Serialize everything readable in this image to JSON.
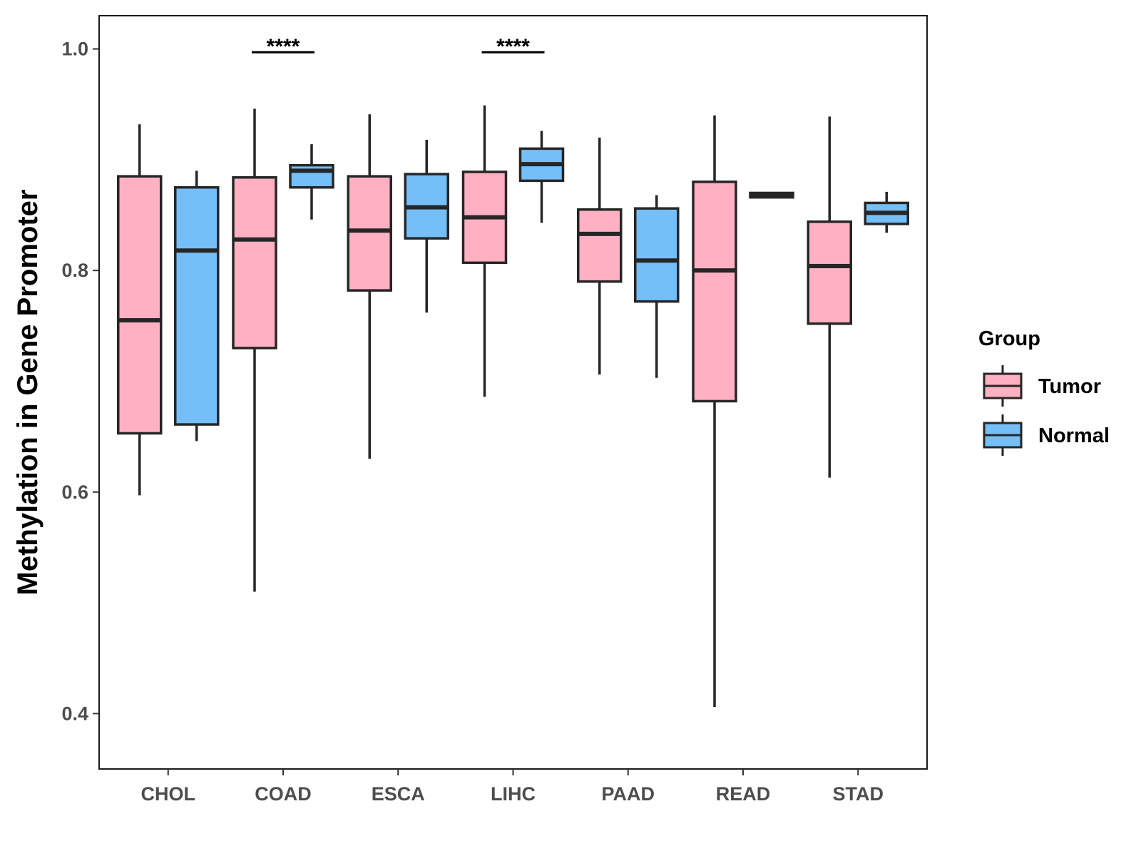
{
  "chart_data": {
    "type": "boxplot",
    "title": "",
    "xlabel": "",
    "ylabel": "Methylation in Gene Promoter",
    "ylim": [
      0.35,
      1.03
    ],
    "yticks": [
      0.4,
      0.6,
      0.8,
      1.0
    ],
    "ytick_labels": [
      "0.4",
      "0.6",
      "0.8",
      "1.0"
    ],
    "categories": [
      "CHOL",
      "COAD",
      "ESCA",
      "LIHC",
      "PAAD",
      "READ",
      "STAD"
    ],
    "legend": {
      "title": "Group",
      "position": "right",
      "entries": [
        {
          "label": "Tumor",
          "color": "#FFB0C2"
        },
        {
          "label": "Normal",
          "color": "#74BFF8"
        }
      ]
    },
    "series": [
      {
        "name": "Tumor",
        "color": "#FFB0C2",
        "boxes": [
          {
            "whisker_low": 0.597,
            "q1": 0.653,
            "median": 0.755,
            "q3": 0.885,
            "whisker_high": 0.932
          },
          {
            "whisker_low": 0.51,
            "q1": 0.73,
            "median": 0.828,
            "q3": 0.884,
            "whisker_high": 0.946
          },
          {
            "whisker_low": 0.63,
            "q1": 0.782,
            "median": 0.836,
            "q3": 0.885,
            "whisker_high": 0.941
          },
          {
            "whisker_low": 0.686,
            "q1": 0.807,
            "median": 0.848,
            "q3": 0.889,
            "whisker_high": 0.949
          },
          {
            "whisker_low": 0.706,
            "q1": 0.79,
            "median": 0.833,
            "q3": 0.855,
            "whisker_high": 0.92
          },
          {
            "whisker_low": 0.406,
            "q1": 0.682,
            "median": 0.8,
            "q3": 0.88,
            "whisker_high": 0.94
          },
          {
            "whisker_low": 0.613,
            "q1": 0.752,
            "median": 0.804,
            "q3": 0.844,
            "whisker_high": 0.939
          }
        ]
      },
      {
        "name": "Normal",
        "color": "#74BFF8",
        "boxes": [
          {
            "whisker_low": 0.646,
            "q1": 0.661,
            "median": 0.818,
            "q3": 0.875,
            "whisker_high": 0.89
          },
          {
            "whisker_low": 0.846,
            "q1": 0.875,
            "median": 0.89,
            "q3": 0.895,
            "whisker_high": 0.914
          },
          {
            "whisker_low": 0.762,
            "q1": 0.829,
            "median": 0.857,
            "q3": 0.887,
            "whisker_high": 0.918
          },
          {
            "whisker_low": 0.843,
            "q1": 0.881,
            "median": 0.896,
            "q3": 0.91,
            "whisker_high": 0.926
          },
          {
            "whisker_low": 0.703,
            "q1": 0.772,
            "median": 0.809,
            "q3": 0.856,
            "whisker_high": 0.868
          },
          {
            "whisker_low": 0.866,
            "q1": 0.866,
            "median": 0.868,
            "q3": 0.87,
            "whisker_high": 0.87
          },
          {
            "whisker_low": 0.834,
            "q1": 0.842,
            "median": 0.852,
            "q3": 0.861,
            "whisker_high": 0.871
          }
        ]
      }
    ],
    "annotations": [
      {
        "category": "COAD",
        "text": "****",
        "y": 0.997
      },
      {
        "category": "LIHC",
        "text": "****",
        "y": 0.997
      }
    ]
  }
}
